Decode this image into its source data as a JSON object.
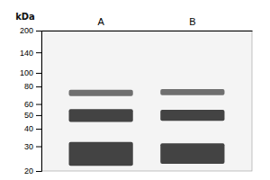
{
  "chart_data": {
    "type": "gel",
    "y_label": "kDa",
    "categories": [
      "A",
      "B"
    ],
    "series": [
      {
        "color": "#606060",
        "values": [
          72,
          73
        ],
        "heights": [
          5,
          5
        ]
      },
      {
        "color": "#303030",
        "values": [
          50,
          50
        ],
        "heights": [
          7,
          6
        ]
      },
      {
        "color": "#303030",
        "values": [
          27,
          27
        ],
        "heights": [
          7,
          6
        ]
      }
    ],
    "log": "y",
    "ylim": [
      20,
      200
    ],
    "yticks": [
      200,
      140,
      100,
      80,
      60,
      50,
      40,
      30,
      20
    ],
    "grid": false
  }
}
